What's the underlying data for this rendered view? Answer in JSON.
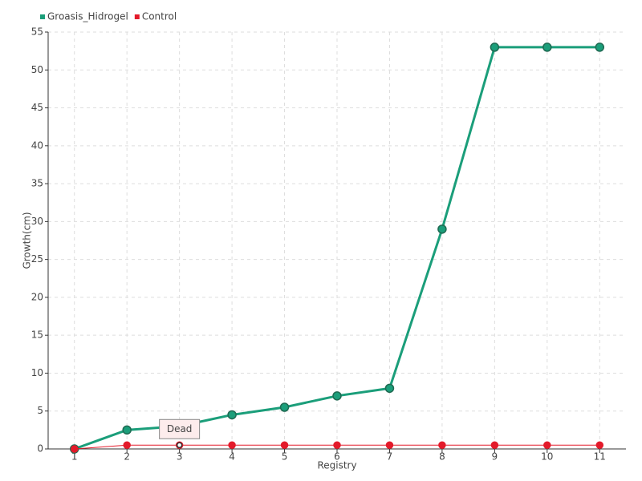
{
  "chart_data": {
    "type": "line",
    "x_label": "Registry",
    "y_label": "Growth(cm)",
    "categories": [
      "1",
      "2",
      "3",
      "4",
      "5",
      "6",
      "7",
      "8",
      "9",
      "10",
      "11"
    ],
    "series": [
      {
        "name": "Groasis_Hidrogel",
        "color": "#1b9e7a",
        "values": [
          0,
          2.5,
          3,
          4.5,
          5.5,
          7,
          8,
          29,
          53,
          53,
          53
        ]
      },
      {
        "name": "Control",
        "color": "#e31a2a",
        "values": [
          0,
          0.5,
          0.5,
          0.5,
          0.5,
          0.5,
          0.5,
          0.5,
          0.5,
          0.5,
          0.5
        ]
      }
    ],
    "annotations": [
      {
        "text": "Dead",
        "category": "3",
        "series": "Control"
      }
    ],
    "ylim": [
      0,
      55
    ],
    "yticks": [
      0,
      5,
      10,
      15,
      20,
      25,
      30,
      35,
      40,
      45,
      50,
      55
    ],
    "grid": true,
    "legend": "top-left"
  }
}
